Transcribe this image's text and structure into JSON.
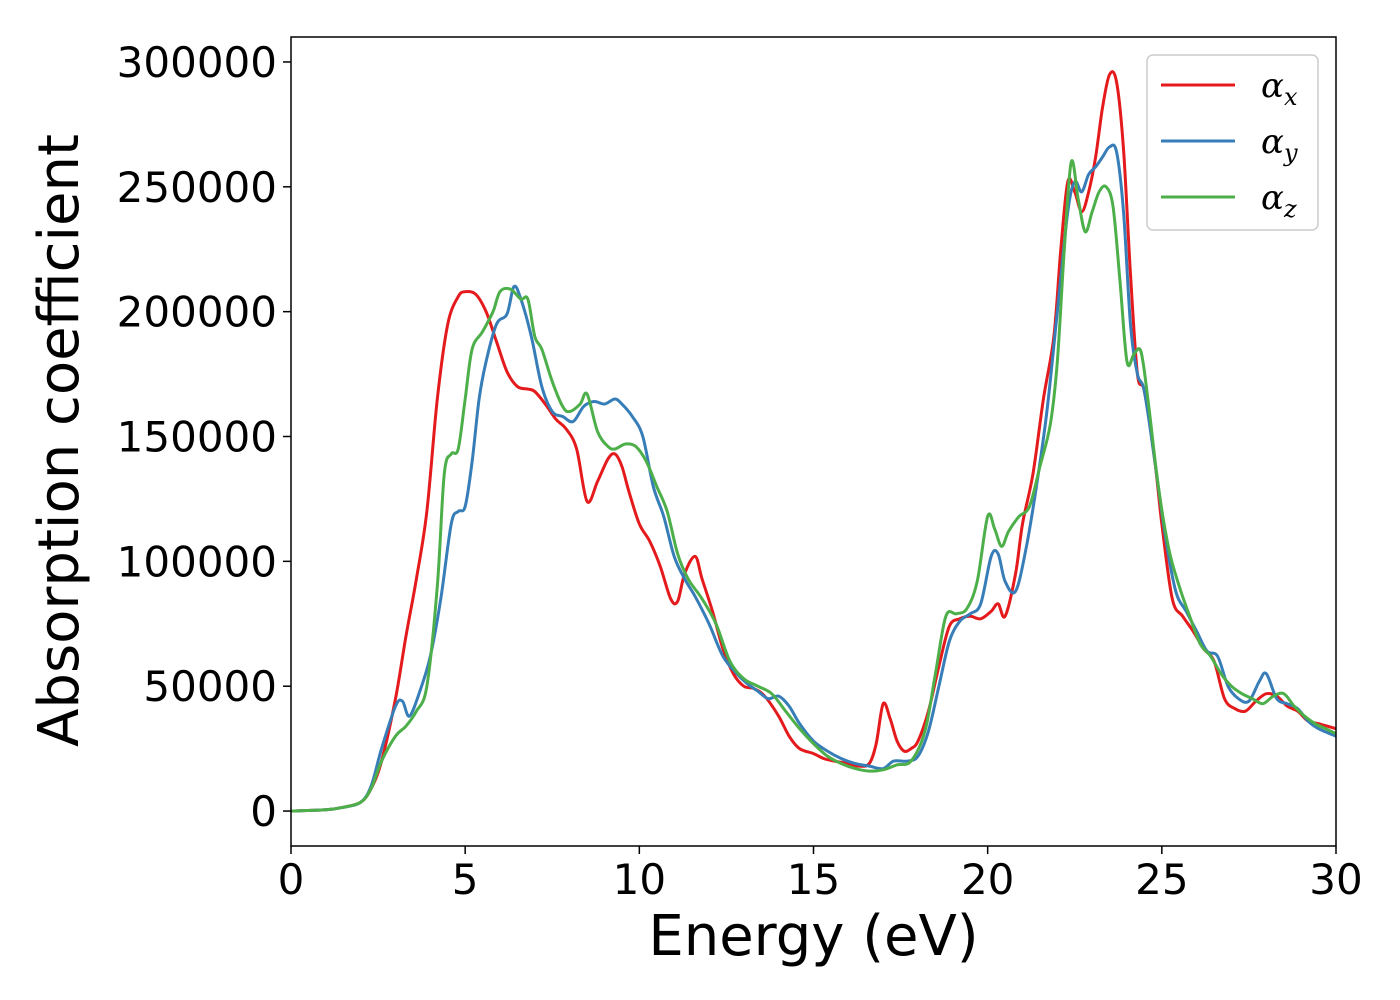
{
  "chart_data": {
    "type": "line",
    "title": "",
    "xlabel": "Energy (eV)",
    "ylabel": "Absorption coefficient",
    "xlim": [
      0,
      30
    ],
    "ylim": [
      -14000,
      310000
    ],
    "xticks": [
      0,
      5,
      10,
      15,
      20,
      25,
      30
    ],
    "yticks": [
      0,
      50000,
      100000,
      150000,
      200000,
      250000,
      300000
    ],
    "grid": false,
    "legend_position": "top-right",
    "series": [
      {
        "name": "α_x",
        "label_base": "α",
        "label_sub": "x",
        "color": "#e41a1c",
        "x": [
          0,
          1,
          1.5,
          2,
          2.3,
          2.6,
          3,
          3.3,
          3.6,
          3.9,
          4.2,
          4.5,
          4.8,
          5.0,
          5.3,
          5.6,
          5.9,
          6.2,
          6.5,
          6.8,
          7.0,
          7.3,
          7.6,
          7.9,
          8.2,
          8.5,
          8.8,
          9.1,
          9.3,
          9.5,
          9.7,
          10.0,
          10.3,
          10.6,
          10.9,
          11.1,
          11.3,
          11.6,
          11.8,
          12.1,
          12.4,
          12.7,
          13.0,
          13.3,
          13.6,
          14.0,
          14.3,
          14.6,
          15.0,
          15.3,
          15.6,
          16.0,
          16.3,
          16.6,
          16.8,
          17.0,
          17.2,
          17.4,
          17.6,
          17.8,
          18.0,
          18.3,
          18.6,
          18.9,
          19.2,
          19.5,
          19.8,
          20.1,
          20.3,
          20.5,
          20.8,
          21.0,
          21.3,
          21.6,
          21.9,
          22.1,
          22.3,
          22.5,
          22.7,
          22.9,
          23.1,
          23.3,
          23.5,
          23.7,
          23.9,
          24.1,
          24.3,
          24.5,
          24.8,
          25.0,
          25.3,
          25.6,
          25.9,
          26.2,
          26.5,
          26.8,
          27.1,
          27.4,
          27.7,
          28.0,
          28.3,
          28.6,
          28.9,
          29.2,
          29.5,
          30.0
        ],
        "values": [
          0,
          500,
          1500,
          3500,
          9000,
          20000,
          45000,
          70000,
          93000,
          120000,
          165000,
          195000,
          206000,
          208000,
          207000,
          200000,
          188000,
          176000,
          170000,
          169000,
          168000,
          163000,
          157000,
          153000,
          145000,
          124000,
          132000,
          141000,
          143000,
          138000,
          128000,
          115000,
          108000,
          98000,
          85000,
          84000,
          95000,
          102000,
          93000,
          80000,
          65000,
          55000,
          50000,
          49000,
          46000,
          38000,
          30000,
          25000,
          23000,
          21000,
          20000,
          19000,
          18000,
          19000,
          27000,
          43000,
          37000,
          28000,
          24000,
          25000,
          28000,
          40000,
          58000,
          74000,
          77000,
          78000,
          77000,
          80000,
          83000,
          78000,
          95000,
          115000,
          135000,
          165000,
          190000,
          225000,
          252000,
          248000,
          240000,
          248000,
          262000,
          282000,
          295000,
          292000,
          265000,
          215000,
          175000,
          168000,
          140000,
          115000,
          85000,
          78000,
          72000,
          65000,
          60000,
          45000,
          41000,
          40000,
          44000,
          47000,
          46000,
          42000,
          40000,
          36000,
          35000,
          33000
        ]
      },
      {
        "name": "α_y",
        "label_base": "α",
        "label_sub": "y",
        "color": "#377eb8",
        "x": [
          0,
          1,
          1.5,
          2,
          2.3,
          2.6,
          3,
          3.2,
          3.4,
          3.7,
          4.0,
          4.3,
          4.6,
          4.8,
          5.0,
          5.2,
          5.4,
          5.6,
          5.9,
          6.2,
          6.4,
          6.6,
          6.9,
          7.2,
          7.5,
          7.8,
          8.1,
          8.4,
          8.7,
          9.0,
          9.3,
          9.5,
          9.8,
          10.1,
          10.4,
          10.7,
          11.0,
          11.3,
          11.6,
          12.0,
          12.4,
          12.8,
          13.1,
          13.4,
          13.7,
          14.0,
          14.3,
          14.6,
          15.0,
          15.4,
          15.8,
          16.2,
          16.6,
          17.0,
          17.3,
          17.7,
          18.0,
          18.3,
          18.6,
          18.9,
          19.2,
          19.5,
          19.8,
          20.1,
          20.3,
          20.5,
          20.8,
          21.1,
          21.4,
          21.7,
          22.0,
          22.3,
          22.5,
          22.7,
          22.9,
          23.1,
          23.3,
          23.5,
          23.7,
          23.9,
          24.1,
          24.3,
          24.5,
          24.8,
          25.1,
          25.4,
          25.7,
          26.0,
          26.3,
          26.6,
          26.9,
          27.2,
          27.5,
          27.8,
          28.0,
          28.3,
          28.6,
          28.9,
          29.2,
          29.5,
          30.0
        ],
        "values": [
          0,
          500,
          1500,
          3500,
          10000,
          25000,
          42000,
          44000,
          38000,
          48000,
          62000,
          85000,
          115000,
          120000,
          122000,
          140000,
          165000,
          180000,
          195000,
          199000,
          210000,
          205000,
          190000,
          170000,
          160000,
          158000,
          156000,
          162000,
          164000,
          163000,
          165000,
          163000,
          158000,
          150000,
          130000,
          118000,
          102000,
          93000,
          86000,
          75000,
          62000,
          55000,
          51000,
          48000,
          45000,
          46000,
          42000,
          35000,
          28000,
          24000,
          21000,
          19000,
          18000,
          17000,
          20000,
          20000,
          22000,
          32000,
          50000,
          68000,
          76000,
          79000,
          83000,
          102000,
          103000,
          92000,
          88000,
          105000,
          130000,
          160000,
          200000,
          240000,
          252000,
          248000,
          255000,
          258000,
          262000,
          266000,
          264000,
          240000,
          195000,
          175000,
          168000,
          140000,
          110000,
          88000,
          80000,
          72000,
          64000,
          62000,
          50000,
          45000,
          44000,
          52000,
          55000,
          45000,
          43000,
          41000,
          36000,
          33000,
          30000
        ]
      },
      {
        "name": "α_z",
        "label_base": "α",
        "label_sub": "z",
        "color": "#4daf4a",
        "x": [
          0,
          1,
          1.5,
          2,
          2.3,
          2.6,
          3,
          3.3,
          3.6,
          3.9,
          4.2,
          4.4,
          4.6,
          4.8,
          5.0,
          5.2,
          5.5,
          5.8,
          6.0,
          6.3,
          6.6,
          6.8,
          7.0,
          7.2,
          7.5,
          7.8,
          8.0,
          8.3,
          8.5,
          8.8,
          9.1,
          9.3,
          9.6,
          9.9,
          10.2,
          10.5,
          10.8,
          11.1,
          11.4,
          11.8,
          12.2,
          12.6,
          13.0,
          13.4,
          13.8,
          14.2,
          14.6,
          15.0,
          15.4,
          15.8,
          16.2,
          16.6,
          17.0,
          17.4,
          17.8,
          18.2,
          18.5,
          18.8,
          19.1,
          19.4,
          19.7,
          20.0,
          20.2,
          20.4,
          20.6,
          20.9,
          21.2,
          21.5,
          21.8,
          22.0,
          22.2,
          22.4,
          22.6,
          22.8,
          23.0,
          23.2,
          23.4,
          23.6,
          23.8,
          24.0,
          24.2,
          24.4,
          24.6,
          24.9,
          25.2,
          25.5,
          25.8,
          26.1,
          26.4,
          26.7,
          27.0,
          27.3,
          27.6,
          27.9,
          28.2,
          28.5,
          28.8,
          29.1,
          29.4,
          29.7,
          30.0
        ],
        "values": [
          0,
          500,
          1500,
          3500,
          9000,
          20000,
          30000,
          34000,
          40000,
          50000,
          90000,
          135000,
          143000,
          145000,
          165000,
          185000,
          192000,
          200000,
          208000,
          209000,
          205000,
          205000,
          190000,
          185000,
          172000,
          162000,
          160000,
          163000,
          167000,
          152000,
          146000,
          145000,
          147000,
          146000,
          140000,
          130000,
          120000,
          103000,
          93000,
          85000,
          75000,
          60000,
          53000,
          50000,
          47000,
          40000,
          33000,
          27000,
          22000,
          19000,
          17000,
          16000,
          16500,
          18500,
          20000,
          32000,
          55000,
          78000,
          79000,
          81000,
          92000,
          118000,
          113000,
          106000,
          112000,
          118000,
          122000,
          138000,
          155000,
          180000,
          225000,
          260000,
          245000,
          232000,
          240000,
          248000,
          250000,
          242000,
          212000,
          180000,
          183000,
          184000,
          165000,
          130000,
          105000,
          90000,
          78000,
          67000,
          62000,
          55000,
          50000,
          47000,
          45000,
          43000,
          46000,
          47000,
          42000,
          38000,
          35000,
          33000,
          31000
        ]
      }
    ]
  }
}
